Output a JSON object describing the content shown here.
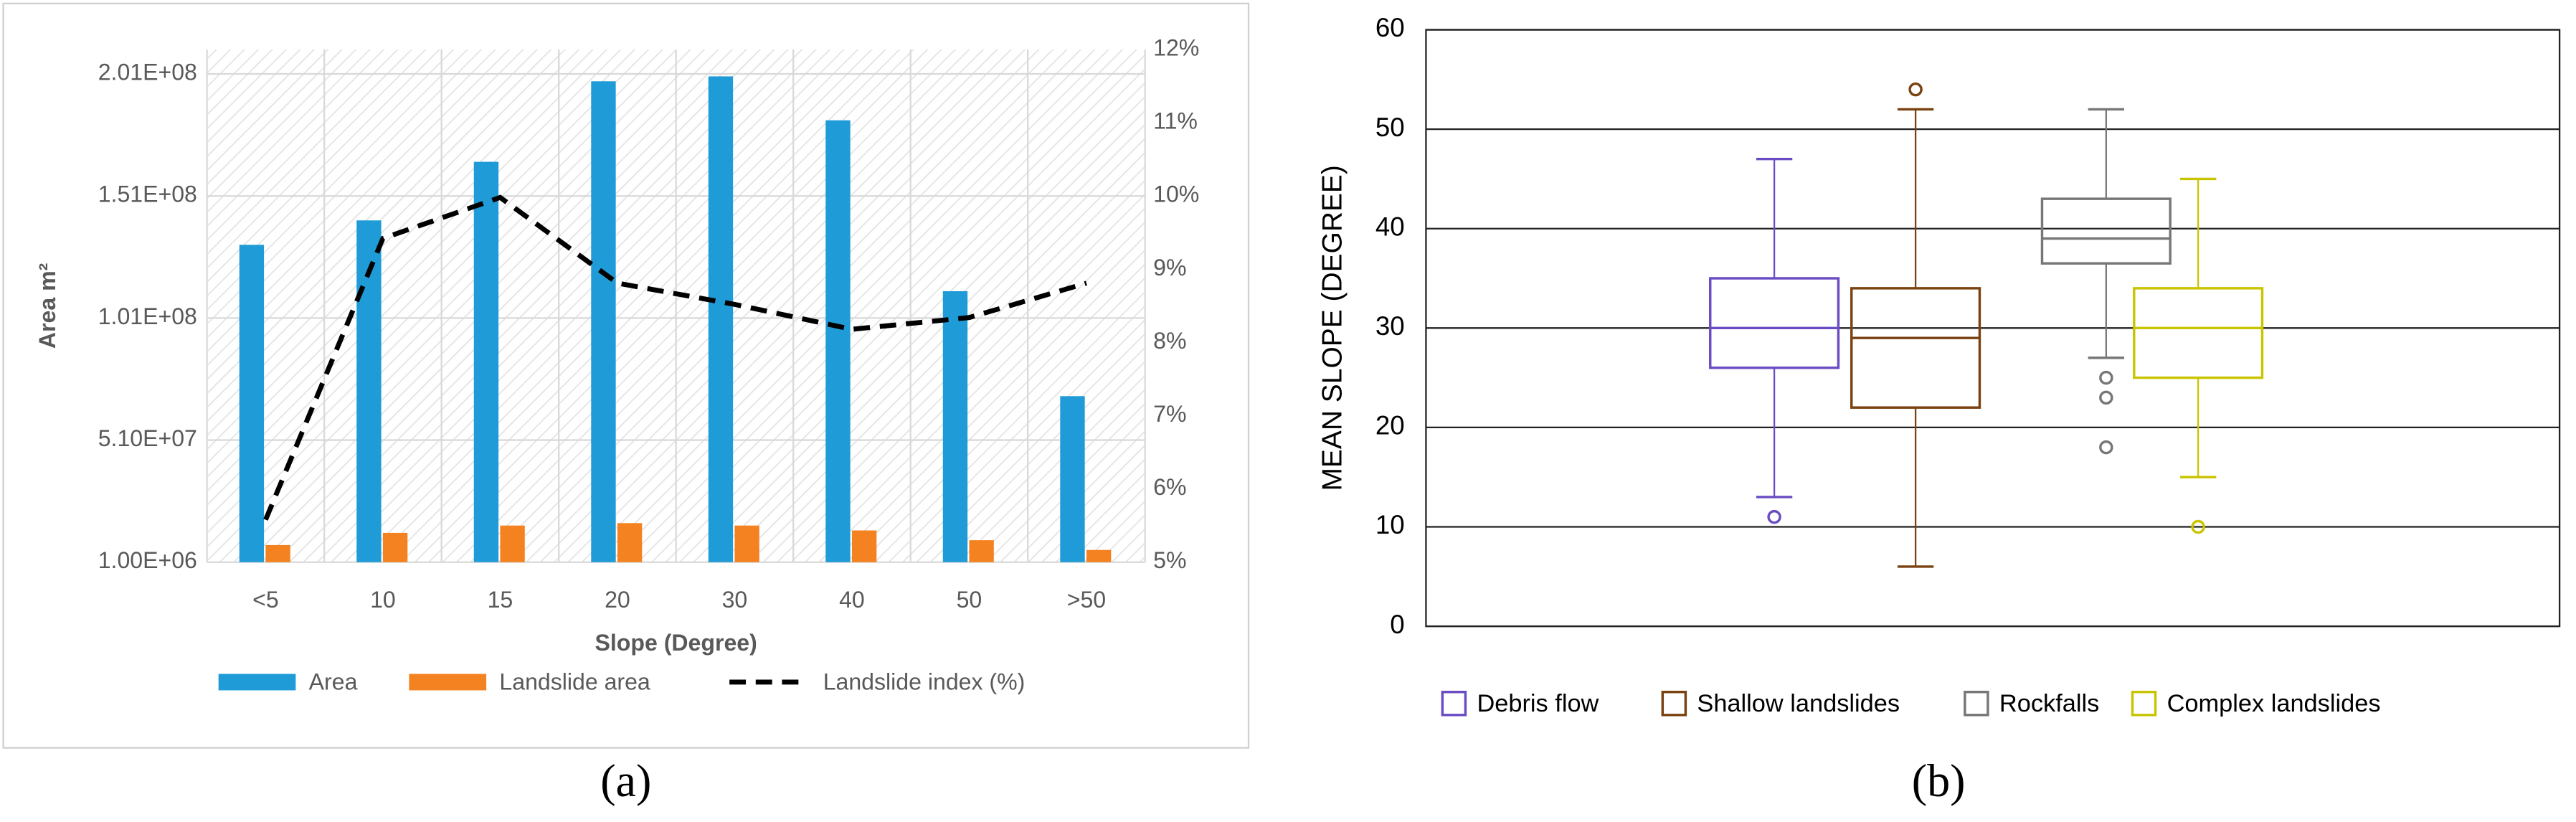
{
  "chart_data": [
    {
      "type": "bar",
      "panel_label": "(a)",
      "x_label": "Slope (Degree)",
      "y_label": "Area m²",
      "categories": [
        "<5",
        "10",
        "15",
        "20",
        "30",
        "40",
        "50",
        ">50"
      ],
      "series": [
        {
          "name": "Area",
          "type": "bar",
          "color": "#1f9bd7",
          "values": [
            131000000,
            141000000,
            165000000,
            198000000,
            200000000,
            182000000,
            112000000,
            69000000
          ]
        },
        {
          "name": "Landslide area",
          "type": "bar",
          "color": "#f58220",
          "values": [
            8000000,
            13000000,
            16000000,
            17000000,
            16000000,
            14000000,
            10000000,
            6000000
          ]
        },
        {
          "name": "Landslide index (%)",
          "type": "line",
          "axis": "y2",
          "color": "#000000",
          "line_style": "dashed",
          "values": [
            5.58,
            9.42,
            9.98,
            8.81,
            8.52,
            8.18,
            8.34,
            8.81
          ]
        }
      ],
      "ylim": [
        1000000,
        211000000
      ],
      "yticks": [
        {
          "value": 1000000,
          "label": "1.00E+06"
        },
        {
          "value": 51000000,
          "label": "5.10E+07"
        },
        {
          "value": 101000000,
          "label": "1.01E+08"
        },
        {
          "value": 151000000,
          "label": "1.51E+08"
        },
        {
          "value": 201000000,
          "label": "2.01E+08"
        }
      ],
      "y2lim": [
        5,
        12
      ],
      "y2ticks": [
        {
          "value": 5,
          "label": "5%"
        },
        {
          "value": 6,
          "label": "6%"
        },
        {
          "value": 7,
          "label": "7%"
        },
        {
          "value": 8,
          "label": "8%"
        },
        {
          "value": 9,
          "label": "9%"
        },
        {
          "value": 10,
          "label": "10%"
        },
        {
          "value": 11,
          "label": "11%"
        },
        {
          "value": 12,
          "label": "12%"
        }
      ],
      "grid": true,
      "legend": "bottom"
    },
    {
      "type": "box",
      "panel_label": "(b)",
      "y_label": "MEAN SLOPE (DEGREE)",
      "series": [
        {
          "name": "Debris flow",
          "color": "#6a4cc4",
          "low": 13,
          "q1": 26,
          "median": 30,
          "q3": 35,
          "high": 47,
          "outliers": [
            11
          ]
        },
        {
          "name": "Shallow landslides",
          "color": "#7a4210",
          "low": 6,
          "q1": 22,
          "median": 29,
          "q3": 34,
          "high": 52,
          "outliers": [
            54
          ]
        },
        {
          "name": "Rockfalls",
          "color": "#777777",
          "low": 27,
          "q1": 36.5,
          "median": 39,
          "q3": 43,
          "high": 52,
          "outliers": [
            25,
            23,
            18
          ]
        },
        {
          "name": "Complex landslides",
          "color": "#c9c400",
          "low": 15,
          "q1": 25,
          "median": 30,
          "q3": 34,
          "high": 45,
          "outliers": [
            10
          ]
        }
      ],
      "ylim": [
        0,
        60
      ],
      "yticks": [
        0,
        10,
        20,
        30,
        40,
        50,
        60
      ],
      "grid": true,
      "legend": "bottom"
    }
  ]
}
